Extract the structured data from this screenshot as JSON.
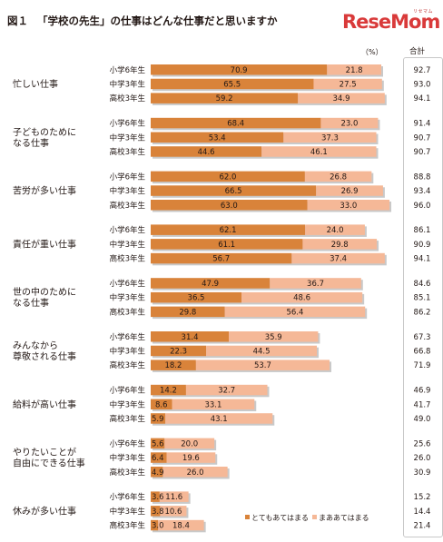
{
  "header": {
    "figure_number": "図１",
    "title": "「学校の先生」の仕事はどんな仕事だと思いますか",
    "logo_text": "ReseMom",
    "logo_ruby": "リセマム",
    "unit": "（%）",
    "total_header": "合計"
  },
  "chart_data": {
    "type": "bar",
    "orientation": "horizontal",
    "stacked": true,
    "title": "「学校の先生」の仕事はどんな仕事だと思いますか",
    "unit": "%",
    "xlim": [
      0,
      100
    ],
    "row_labels": [
      "小学6年生",
      "中学3年生",
      "高校3年生"
    ],
    "series": [
      {
        "name": "とてもあてはまる",
        "color": "#d9833a"
      },
      {
        "name": "まああてはまる",
        "color": "#f5b897"
      }
    ],
    "legend_position": "bottom-right",
    "groups": [
      {
        "label": "忙しい仕事",
        "rows": [
          {
            "values": [
              70.9,
              21.8
            ],
            "total": "92.7"
          },
          {
            "values": [
              65.5,
              27.5
            ],
            "total": "93.0"
          },
          {
            "values": [
              59.2,
              34.9
            ],
            "total": "94.1"
          }
        ]
      },
      {
        "label": "子どものために\nなる仕事",
        "rows": [
          {
            "values": [
              68.4,
              23.0
            ],
            "total": "91.4"
          },
          {
            "values": [
              53.4,
              37.3
            ],
            "total": "90.7"
          },
          {
            "values": [
              44.6,
              46.1
            ],
            "total": "90.7"
          }
        ]
      },
      {
        "label": "苦労が多い仕事",
        "rows": [
          {
            "values": [
              62.0,
              26.8
            ],
            "total": "88.8"
          },
          {
            "values": [
              66.5,
              26.9
            ],
            "total": "93.4"
          },
          {
            "values": [
              63.0,
              33.0
            ],
            "total": "96.0"
          }
        ]
      },
      {
        "label": "責任が重い仕事",
        "rows": [
          {
            "values": [
              62.1,
              24.0
            ],
            "total": "86.1"
          },
          {
            "values": [
              61.1,
              29.8
            ],
            "total": "90.9"
          },
          {
            "values": [
              56.7,
              37.4
            ],
            "total": "94.1"
          }
        ]
      },
      {
        "label": "世の中のために\nなる仕事",
        "rows": [
          {
            "values": [
              47.9,
              36.7
            ],
            "total": "84.6"
          },
          {
            "values": [
              36.5,
              48.6
            ],
            "total": "85.1"
          },
          {
            "values": [
              29.8,
              56.4
            ],
            "total": "86.2"
          }
        ]
      },
      {
        "label": "みんなから\n尊敬される仕事",
        "rows": [
          {
            "values": [
              31.4,
              35.9
            ],
            "total": "67.3"
          },
          {
            "values": [
              22.3,
              44.5
            ],
            "total": "66.8"
          },
          {
            "values": [
              18.2,
              53.7
            ],
            "total": "71.9"
          }
        ]
      },
      {
        "label": "給料が高い仕事",
        "rows": [
          {
            "values": [
              14.2,
              32.7
            ],
            "total": "46.9"
          },
          {
            "values": [
              8.6,
              33.1
            ],
            "total": "41.7"
          },
          {
            "values": [
              5.9,
              43.1
            ],
            "total": "49.0"
          }
        ]
      },
      {
        "label": "やりたいことが\n自由にできる仕事",
        "rows": [
          {
            "values": [
              5.6,
              20.0
            ],
            "total": "25.6"
          },
          {
            "values": [
              6.4,
              19.6
            ],
            "total": "26.0"
          },
          {
            "values": [
              4.9,
              26.0
            ],
            "total": "30.9"
          }
        ]
      },
      {
        "label": "休みが多い仕事",
        "rows": [
          {
            "values": [
              3.6,
              11.6
            ],
            "total": "15.2"
          },
          {
            "values": [
              3.8,
              10.6
            ],
            "total": "14.4"
          },
          {
            "values": [
              3.0,
              18.4
            ],
            "total": "21.4"
          }
        ]
      }
    ]
  }
}
